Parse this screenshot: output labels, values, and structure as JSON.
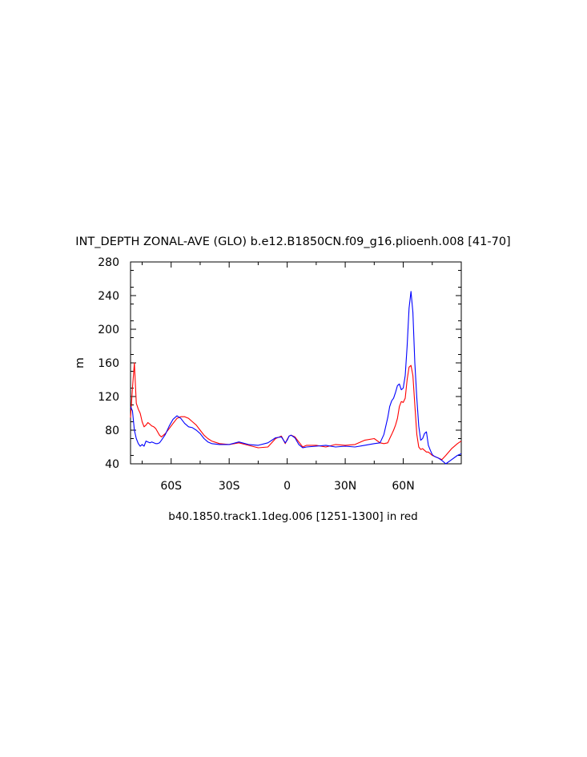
{
  "chart_data": {
    "type": "line",
    "title": "INT_DEPTH ZONAL-AVE (GLO) b.e12.B1850CN.f09_g16.plioenh.008 [41-70]",
    "subtitle": "b40.1850.track1.1deg.006 [1251-1300] in red",
    "xlabel": "",
    "ylabel": "m",
    "xlim": [
      -81,
      90
    ],
    "ylim": [
      40,
      280
    ],
    "x_ticks": [
      -60,
      -30,
      0,
      30,
      60
    ],
    "x_tick_labels": [
      "60S",
      "30S",
      "0",
      "30N",
      "60N"
    ],
    "y_ticks": [
      40,
      80,
      120,
      160,
      200,
      240,
      280
    ],
    "y_tick_labels": [
      "40",
      "80",
      "120",
      "160",
      "200",
      "240",
      "280"
    ],
    "grid": false,
    "colors": {
      "blue": "#0000ff",
      "red": "#ff0000"
    },
    "series": [
      {
        "color": "#0000ff",
        "x": [
          -81,
          -80,
          -79,
          -78,
          -77,
          -76,
          -75,
          -74,
          -73,
          -72,
          -71,
          -70,
          -69,
          -68,
          -67,
          -66,
          -65,
          -63,
          -61,
          -59,
          -57,
          -55,
          -53,
          -51,
          -49,
          -47,
          -45,
          -43,
          -41,
          -39,
          -35,
          -30,
          -25,
          -20,
          -15,
          -10,
          -6,
          -3,
          -1,
          0,
          1,
          2,
          4,
          6,
          8,
          10,
          15,
          20,
          25,
          30,
          35,
          40,
          45,
          48,
          50,
          52,
          53,
          54,
          55,
          56,
          57,
          58,
          59,
          60,
          61,
          62,
          63,
          64,
          65,
          66,
          67,
          68,
          69,
          70,
          71,
          72,
          73,
          74,
          75,
          76,
          77,
          78,
          80,
          82,
          85,
          88,
          90
        ],
        "values": [
          108,
          103,
          80,
          70,
          64,
          61,
          63,
          61,
          67,
          66,
          65,
          66,
          65,
          64,
          64,
          65,
          68,
          75,
          85,
          93,
          97,
          94,
          88,
          84,
          83,
          80,
          76,
          70,
          66,
          64,
          63,
          63,
          66,
          63,
          62,
          65,
          71,
          72,
          65,
          68,
          73,
          74,
          71,
          63,
          59,
          60,
          61,
          62,
          60,
          61,
          60,
          62,
          64,
          65,
          75,
          95,
          108,
          115,
          118,
          125,
          133,
          135,
          128,
          130,
          145,
          180,
          225,
          245,
          220,
          160,
          118,
          85,
          68,
          70,
          76,
          78,
          62,
          56,
          51,
          49,
          48,
          47,
          44,
          40,
          45,
          50,
          52
        ]
      },
      {
        "color": "#ff0000",
        "x": [
          -81,
          -80,
          -79,
          -78,
          -77,
          -76,
          -75,
          -74,
          -73,
          -72,
          -71,
          -70,
          -69,
          -68,
          -67,
          -66,
          -65,
          -63,
          -61,
          -59,
          -57,
          -55,
          -53,
          -51,
          -49,
          -47,
          -45,
          -43,
          -41,
          -39,
          -35,
          -30,
          -25,
          -20,
          -15,
          -10,
          -6,
          -3,
          -1,
          0,
          1,
          2,
          4,
          6,
          8,
          10,
          15,
          20,
          25,
          30,
          35,
          40,
          45,
          48,
          50,
          52,
          53,
          54,
          55,
          56,
          57,
          58,
          59,
          60,
          61,
          62,
          63,
          64,
          65,
          66,
          67,
          68,
          69,
          70,
          71,
          72,
          73,
          74,
          75,
          76,
          77,
          78,
          80,
          82,
          85,
          88,
          90
        ],
        "values": [
          95,
          130,
          160,
          112,
          105,
          100,
          90,
          84,
          86,
          89,
          87,
          85,
          84,
          82,
          78,
          74,
          72,
          76,
          82,
          88,
          94,
          96,
          96,
          94,
          90,
          86,
          80,
          74,
          70,
          67,
          64,
          63,
          65,
          62,
          59,
          60,
          70,
          73,
          64,
          69,
          73,
          74,
          72,
          66,
          60,
          62,
          62,
          60,
          63,
          62,
          63,
          68,
          70,
          65,
          64,
          65,
          70,
          75,
          80,
          86,
          94,
          108,
          114,
          113,
          118,
          140,
          155,
          157,
          145,
          110,
          75,
          60,
          57,
          58,
          56,
          54,
          54,
          52,
          50,
          49,
          48,
          47,
          45,
          50,
          58,
          64,
          67
        ]
      }
    ]
  }
}
